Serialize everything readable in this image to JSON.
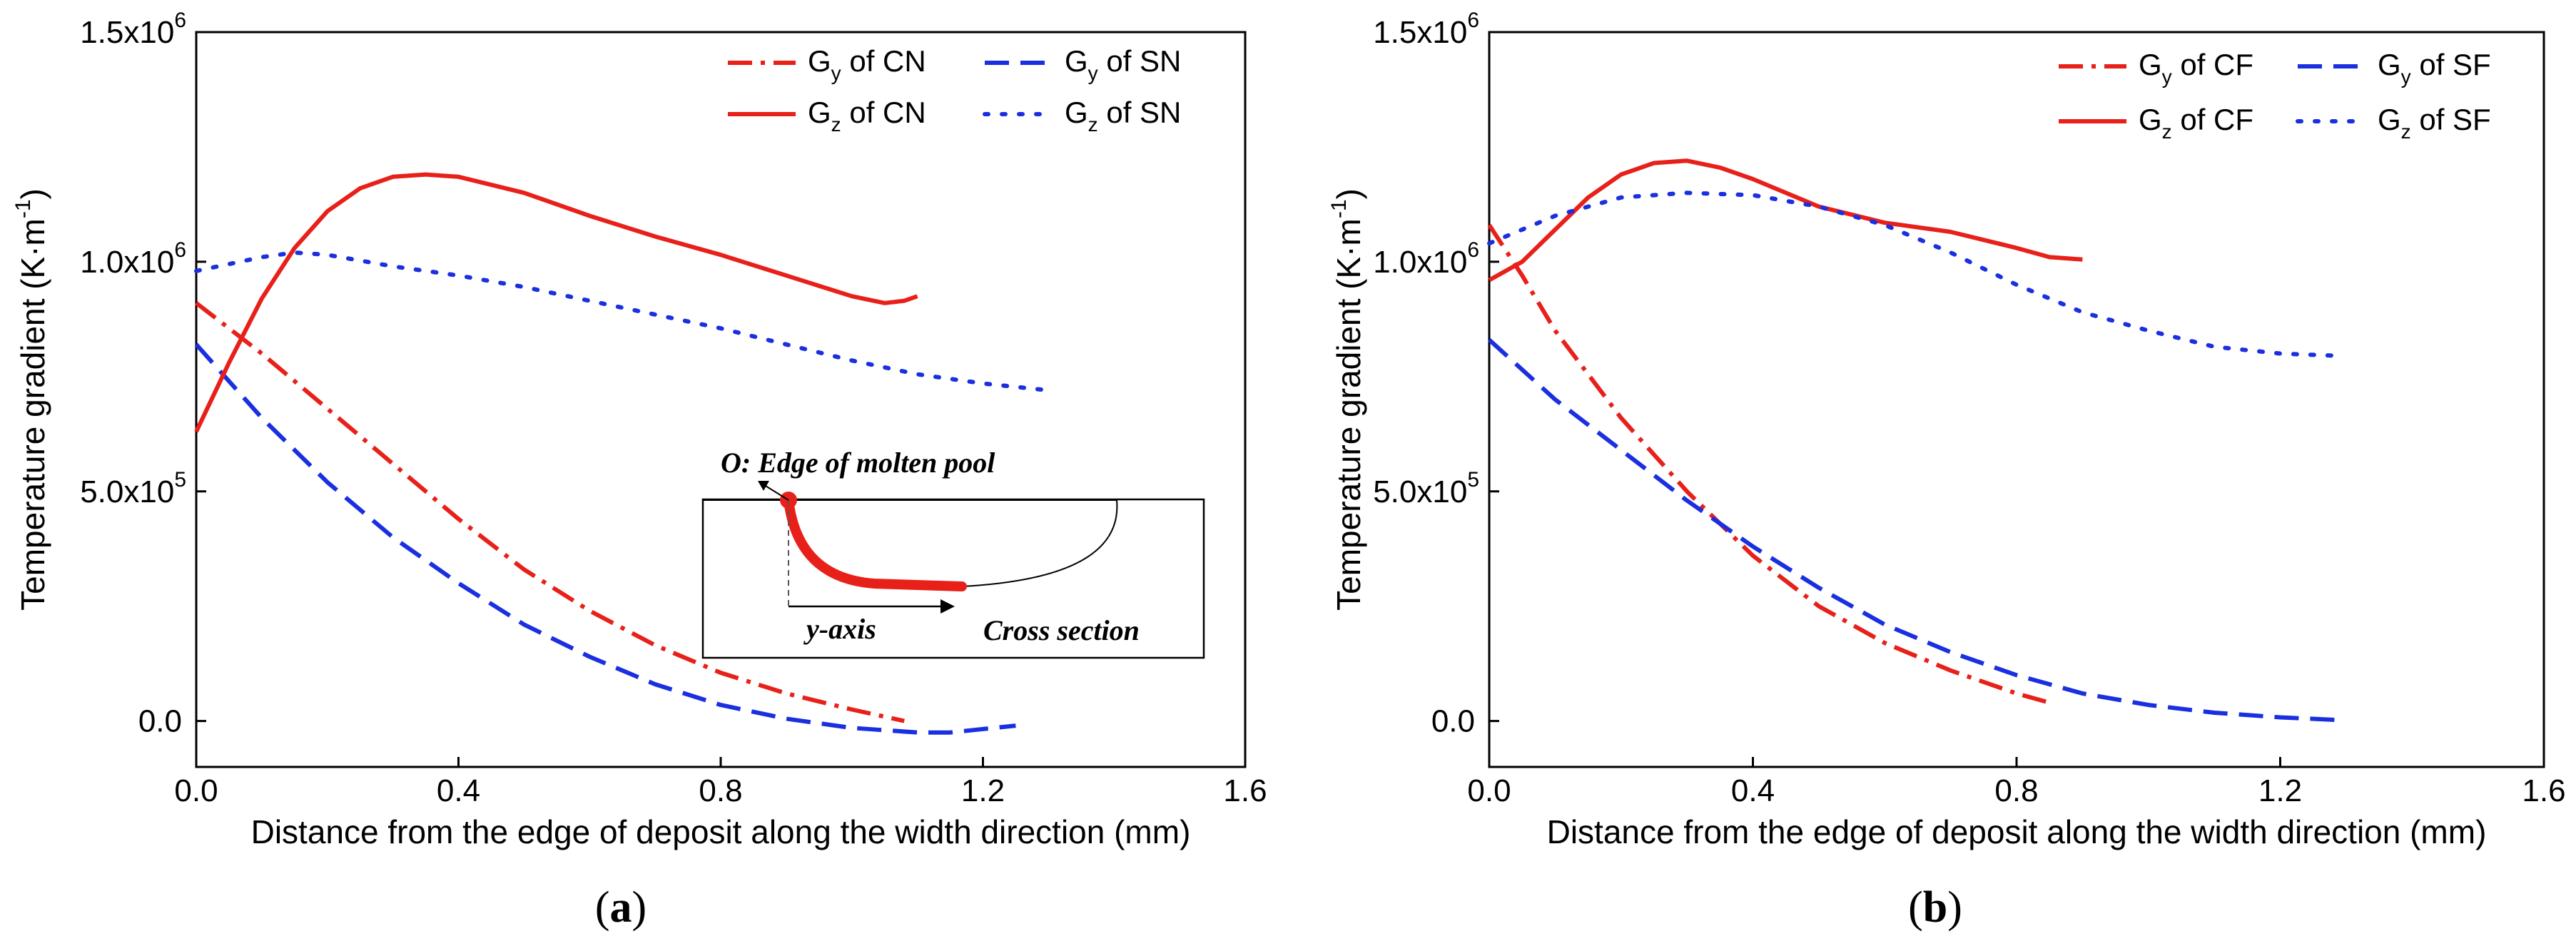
{
  "chart_data": [
    {
      "type": "line",
      "panel_label": "a",
      "xlabel": "Distance from the edge of deposit along the width direction (mm)",
      "ylabel_main": "Temperature gradient (K·m",
      "ylabel_exp": "-1",
      "ylabel_close": ")",
      "xlim": [
        0,
        1.6
      ],
      "ylim": [
        -100000.0,
        1500000.0
      ],
      "x_ticks": [
        0.0,
        0.4,
        0.8,
        1.2,
        1.6
      ],
      "x_tick_labels": [
        "0.0",
        "0.4",
        "0.8",
        "1.2",
        "1.6"
      ],
      "y_ticks": [
        0,
        500000,
        1000000,
        1500000
      ],
      "y_tick_labels": [
        {
          "base": "0.0",
          "exp": ""
        },
        {
          "base": "5.0x10",
          "exp": "5"
        },
        {
          "base": "1.0x10",
          "exp": "6"
        },
        {
          "base": "1.5x10",
          "exp": "6"
        }
      ],
      "series": [
        {
          "name": "Gy of CN",
          "sym": "G",
          "sub": "y",
          "suffix": " of CN",
          "color": "#e8201a",
          "dash": "dashdot",
          "x": [
            0.0,
            0.1,
            0.2,
            0.3,
            0.4,
            0.5,
            0.6,
            0.7,
            0.8,
            0.9,
            1.0,
            1.08
          ],
          "y": [
            910000,
            800000,
            680000,
            560000,
            440000,
            330000,
            240000,
            165000,
            105000,
            60000,
            25000,
            0
          ]
        },
        {
          "name": "Gy of SN",
          "sym": "G",
          "sub": "y",
          "suffix": " of SN",
          "color": "#1a2fe0",
          "dash": "dash",
          "x": [
            0.0,
            0.1,
            0.2,
            0.3,
            0.4,
            0.5,
            0.6,
            0.7,
            0.8,
            0.9,
            1.0,
            1.1,
            1.15,
            1.25
          ],
          "y": [
            820000,
            660000,
            520000,
            400000,
            300000,
            210000,
            140000,
            80000,
            35000,
            5000,
            -15000,
            -25000,
            -25000,
            -10000
          ]
        },
        {
          "name": "Gz of CN",
          "sym": "G",
          "sub": "z",
          "suffix": " of CN",
          "color": "#e8201a",
          "dash": "solid",
          "x": [
            0.0,
            0.05,
            0.1,
            0.15,
            0.2,
            0.25,
            0.3,
            0.35,
            0.4,
            0.5,
            0.6,
            0.7,
            0.8,
            0.9,
            1.0,
            1.05,
            1.08,
            1.1
          ],
          "y": [
            630000,
            780000,
            920000,
            1030000,
            1110000,
            1160000,
            1185000,
            1190000,
            1185000,
            1150000,
            1100000,
            1055000,
            1015000,
            970000,
            925000,
            910000,
            915000,
            925000
          ]
        },
        {
          "name": "Gz of SN",
          "sym": "G",
          "sub": "z",
          "suffix": " of SN",
          "color": "#1a2fe0",
          "dash": "dot",
          "x": [
            0.0,
            0.1,
            0.15,
            0.2,
            0.3,
            0.4,
            0.5,
            0.6,
            0.7,
            0.8,
            0.9,
            1.0,
            1.1,
            1.2,
            1.3
          ],
          "y": [
            980000,
            1010000,
            1020000,
            1015000,
            990000,
            970000,
            945000,
            915000,
            885000,
            855000,
            820000,
            785000,
            755000,
            735000,
            720000
          ]
        }
      ],
      "inset": {
        "origin_label": "O: Edge of molten pool",
        "axis_label": "y-axis",
        "section_label": "Cross section"
      }
    },
    {
      "type": "line",
      "panel_label": "b",
      "xlabel": "Distance from the edge of deposit along the width direction (mm)",
      "ylabel_main": "Temperature gradient (K·m",
      "ylabel_exp": "-1",
      "ylabel_close": ")",
      "xlim": [
        0,
        1.6
      ],
      "ylim": [
        -100000.0,
        1500000.0
      ],
      "x_ticks": [
        0.0,
        0.4,
        0.8,
        1.2,
        1.6
      ],
      "x_tick_labels": [
        "0.0",
        "0.4",
        "0.8",
        "1.2",
        "1.6"
      ],
      "y_ticks": [
        0,
        500000,
        1000000,
        1500000
      ],
      "y_tick_labels": [
        {
          "base": "0.0",
          "exp": ""
        },
        {
          "base": "5.0x10",
          "exp": "5"
        },
        {
          "base": "1.0x10",
          "exp": "6"
        },
        {
          "base": "1.5x10",
          "exp": "6"
        }
      ],
      "series": [
        {
          "name": "Gy of CF",
          "sym": "G",
          "sub": "y",
          "suffix": " of CF",
          "color": "#e8201a",
          "dash": "dashdot",
          "x": [
            0.0,
            0.05,
            0.1,
            0.2,
            0.3,
            0.4,
            0.5,
            0.6,
            0.7,
            0.8,
            0.85
          ],
          "y": [
            1080000,
            970000,
            850000,
            660000,
            500000,
            360000,
            250000,
            170000,
            110000,
            60000,
            40000
          ]
        },
        {
          "name": "Gy of SF",
          "sym": "G",
          "sub": "y",
          "suffix": " of SF",
          "color": "#1a2fe0",
          "dash": "dash",
          "x": [
            0.0,
            0.1,
            0.2,
            0.3,
            0.4,
            0.5,
            0.6,
            0.7,
            0.8,
            0.9,
            1.0,
            1.1,
            1.2,
            1.29
          ],
          "y": [
            830000,
            700000,
            590000,
            480000,
            380000,
            290000,
            210000,
            150000,
            100000,
            60000,
            35000,
            18000,
            8000,
            2000
          ]
        },
        {
          "name": "Gz of CF",
          "sym": "G",
          "sub": "z",
          "suffix": " of CF",
          "color": "#e8201a",
          "dash": "solid",
          "x": [
            0.0,
            0.05,
            0.1,
            0.15,
            0.2,
            0.25,
            0.3,
            0.35,
            0.4,
            0.5,
            0.6,
            0.7,
            0.8,
            0.85,
            0.9
          ],
          "y": [
            960000,
            1000000,
            1070000,
            1140000,
            1190000,
            1215000,
            1220000,
            1205000,
            1180000,
            1120000,
            1085000,
            1065000,
            1030000,
            1010000,
            1005000
          ]
        },
        {
          "name": "Gz of SF",
          "sym": "G",
          "sub": "z",
          "suffix": " of SF",
          "color": "#1a2fe0",
          "dash": "dot",
          "x": [
            0.0,
            0.1,
            0.2,
            0.3,
            0.4,
            0.5,
            0.6,
            0.7,
            0.8,
            0.9,
            1.0,
            1.1,
            1.2,
            1.29
          ],
          "y": [
            1040000,
            1100000,
            1140000,
            1150000,
            1145000,
            1120000,
            1080000,
            1020000,
            950000,
            890000,
            850000,
            815000,
            800000,
            795000
          ]
        }
      ]
    }
  ]
}
